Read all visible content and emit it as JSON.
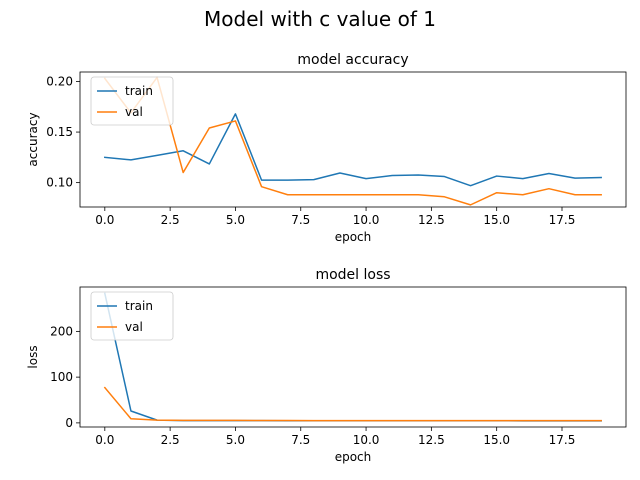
{
  "figure": {
    "suptitle": "Model with c value of 1"
  },
  "chart_data": [
    {
      "type": "line",
      "title": "model accuracy",
      "xlabel": "epoch",
      "ylabel": "accuracy",
      "xlim": [
        -0.95,
        19.95
      ],
      "ylim": [
        0.0759,
        0.2094
      ],
      "xticks": [
        0.0,
        2.5,
        5.0,
        7.5,
        10.0,
        12.5,
        15.0,
        17.5
      ],
      "yticks": [
        0.1,
        0.15,
        0.2
      ],
      "xtick_labels": [
        "0.0",
        "2.5",
        "5.0",
        "7.5",
        "10.0",
        "12.5",
        "15.0",
        "17.5"
      ],
      "ytick_labels": [
        "0.10",
        "0.15",
        "0.20"
      ],
      "legend": "upper left",
      "x": [
        0,
        1,
        2,
        3,
        4,
        5,
        6,
        7,
        8,
        9,
        10,
        11,
        12,
        13,
        14,
        15,
        16,
        17,
        18,
        19
      ],
      "series": [
        {
          "name": "train",
          "color": "#1f77b4",
          "values": [
            0.125,
            0.1225,
            0.127,
            0.1315,
            0.1185,
            0.168,
            0.1025,
            0.1025,
            0.103,
            0.1095,
            0.104,
            0.107,
            0.1075,
            0.106,
            0.097,
            0.1065,
            0.104,
            0.109,
            0.1045,
            0.105
          ]
        },
        {
          "name": "val",
          "color": "#ff7f0e",
          "values": [
            0.203,
            0.169,
            0.204,
            0.11,
            0.154,
            0.161,
            0.096,
            0.088,
            0.088,
            0.088,
            0.088,
            0.088,
            0.088,
            0.086,
            0.078,
            0.09,
            0.088,
            0.094,
            0.088,
            0.088
          ]
        }
      ]
    },
    {
      "type": "line",
      "title": "model loss",
      "xlabel": "epoch",
      "ylabel": "loss",
      "xlim": [
        -0.95,
        19.95
      ],
      "ylim": [
        -9,
        297
      ],
      "xticks": [
        0.0,
        2.5,
        5.0,
        7.5,
        10.0,
        12.5,
        15.0,
        17.5
      ],
      "yticks": [
        0,
        100,
        200
      ],
      "xtick_labels": [
        "0.0",
        "2.5",
        "5.0",
        "7.5",
        "10.0",
        "12.5",
        "15.0",
        "17.5"
      ],
      "ytick_labels": [
        "0",
        "100",
        "200"
      ],
      "legend": "upper left",
      "x": [
        0,
        1,
        2,
        3,
        4,
        5,
        6,
        7,
        8,
        9,
        10,
        11,
        12,
        13,
        14,
        15,
        16,
        17,
        18,
        19
      ],
      "series": [
        {
          "name": "train",
          "color": "#1f77b4",
          "values": [
            283,
            26,
            6,
            5,
            5,
            5,
            4.9,
            4.8,
            4.8,
            4.7,
            4.7,
            4.7,
            4.6,
            4.6,
            4.6,
            4.6,
            4.5,
            4.5,
            4.5,
            4.5
          ]
        },
        {
          "name": "val",
          "color": "#ff7f0e",
          "values": [
            77,
            9,
            6,
            5.5,
            5.4,
            5.4,
            5.2,
            5.1,
            5,
            5,
            5,
            5,
            5,
            5,
            5,
            5,
            5,
            5,
            5,
            5
          ]
        }
      ]
    }
  ]
}
